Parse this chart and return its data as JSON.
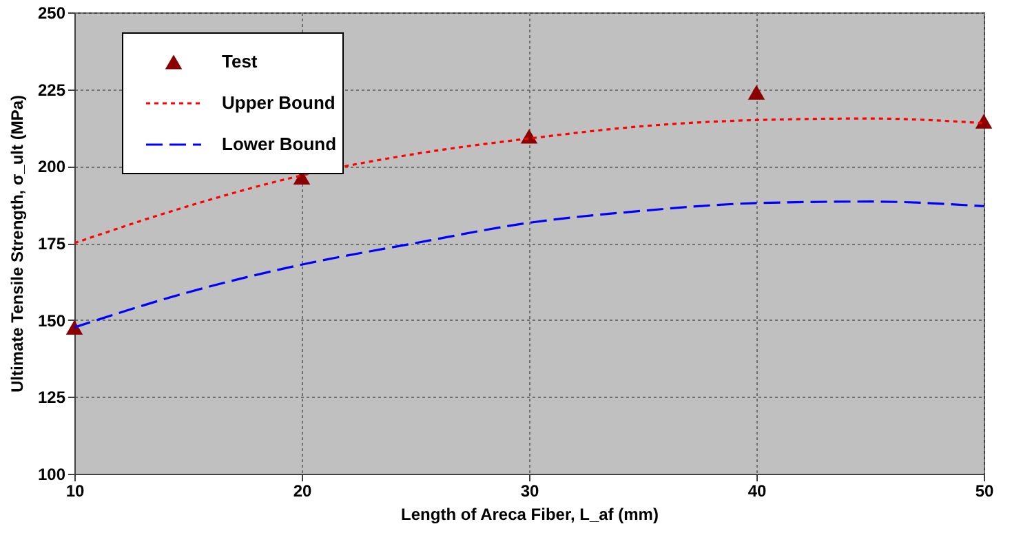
{
  "chart_data": {
    "type": "line",
    "xlabel": "Length of Areca Fiber, L_af (mm)",
    "ylabel": "Ultimate Tensile Strength, σ_ult (MPa)",
    "xlim": [
      10,
      50
    ],
    "xticks": [
      10,
      20,
      30,
      40,
      50
    ],
    "ylim": [
      100,
      250
    ],
    "yticks": [
      100,
      125,
      150,
      175,
      200,
      225,
      250
    ],
    "grid": true,
    "legend": "top left",
    "series": [
      {
        "name": "Test",
        "type": "scatter",
        "marker": "triangle",
        "color": "#8b0000",
        "x": [
          10,
          20,
          30,
          40,
          50
        ],
        "values": [
          147.6,
          196.4,
          209.7,
          224,
          214.6
        ]
      },
      {
        "name": "Upper Bound",
        "line_style": "dotted",
        "color": "#ff0000",
        "x": [
          10,
          15,
          20,
          25,
          30,
          35,
          40,
          45,
          50
        ],
        "values": [
          175,
          187,
          197,
          204,
          209,
          213,
          215,
          215.5,
          214
        ]
      },
      {
        "name": "Lower Bound",
        "line_style": "dashed",
        "color": "#0000ff",
        "x": [
          10,
          15,
          20,
          25,
          30,
          35,
          40,
          45,
          50
        ],
        "values": [
          147.6,
          159,
          168,
          175,
          181.6,
          185.5,
          188,
          188.5,
          187
        ]
      }
    ]
  }
}
